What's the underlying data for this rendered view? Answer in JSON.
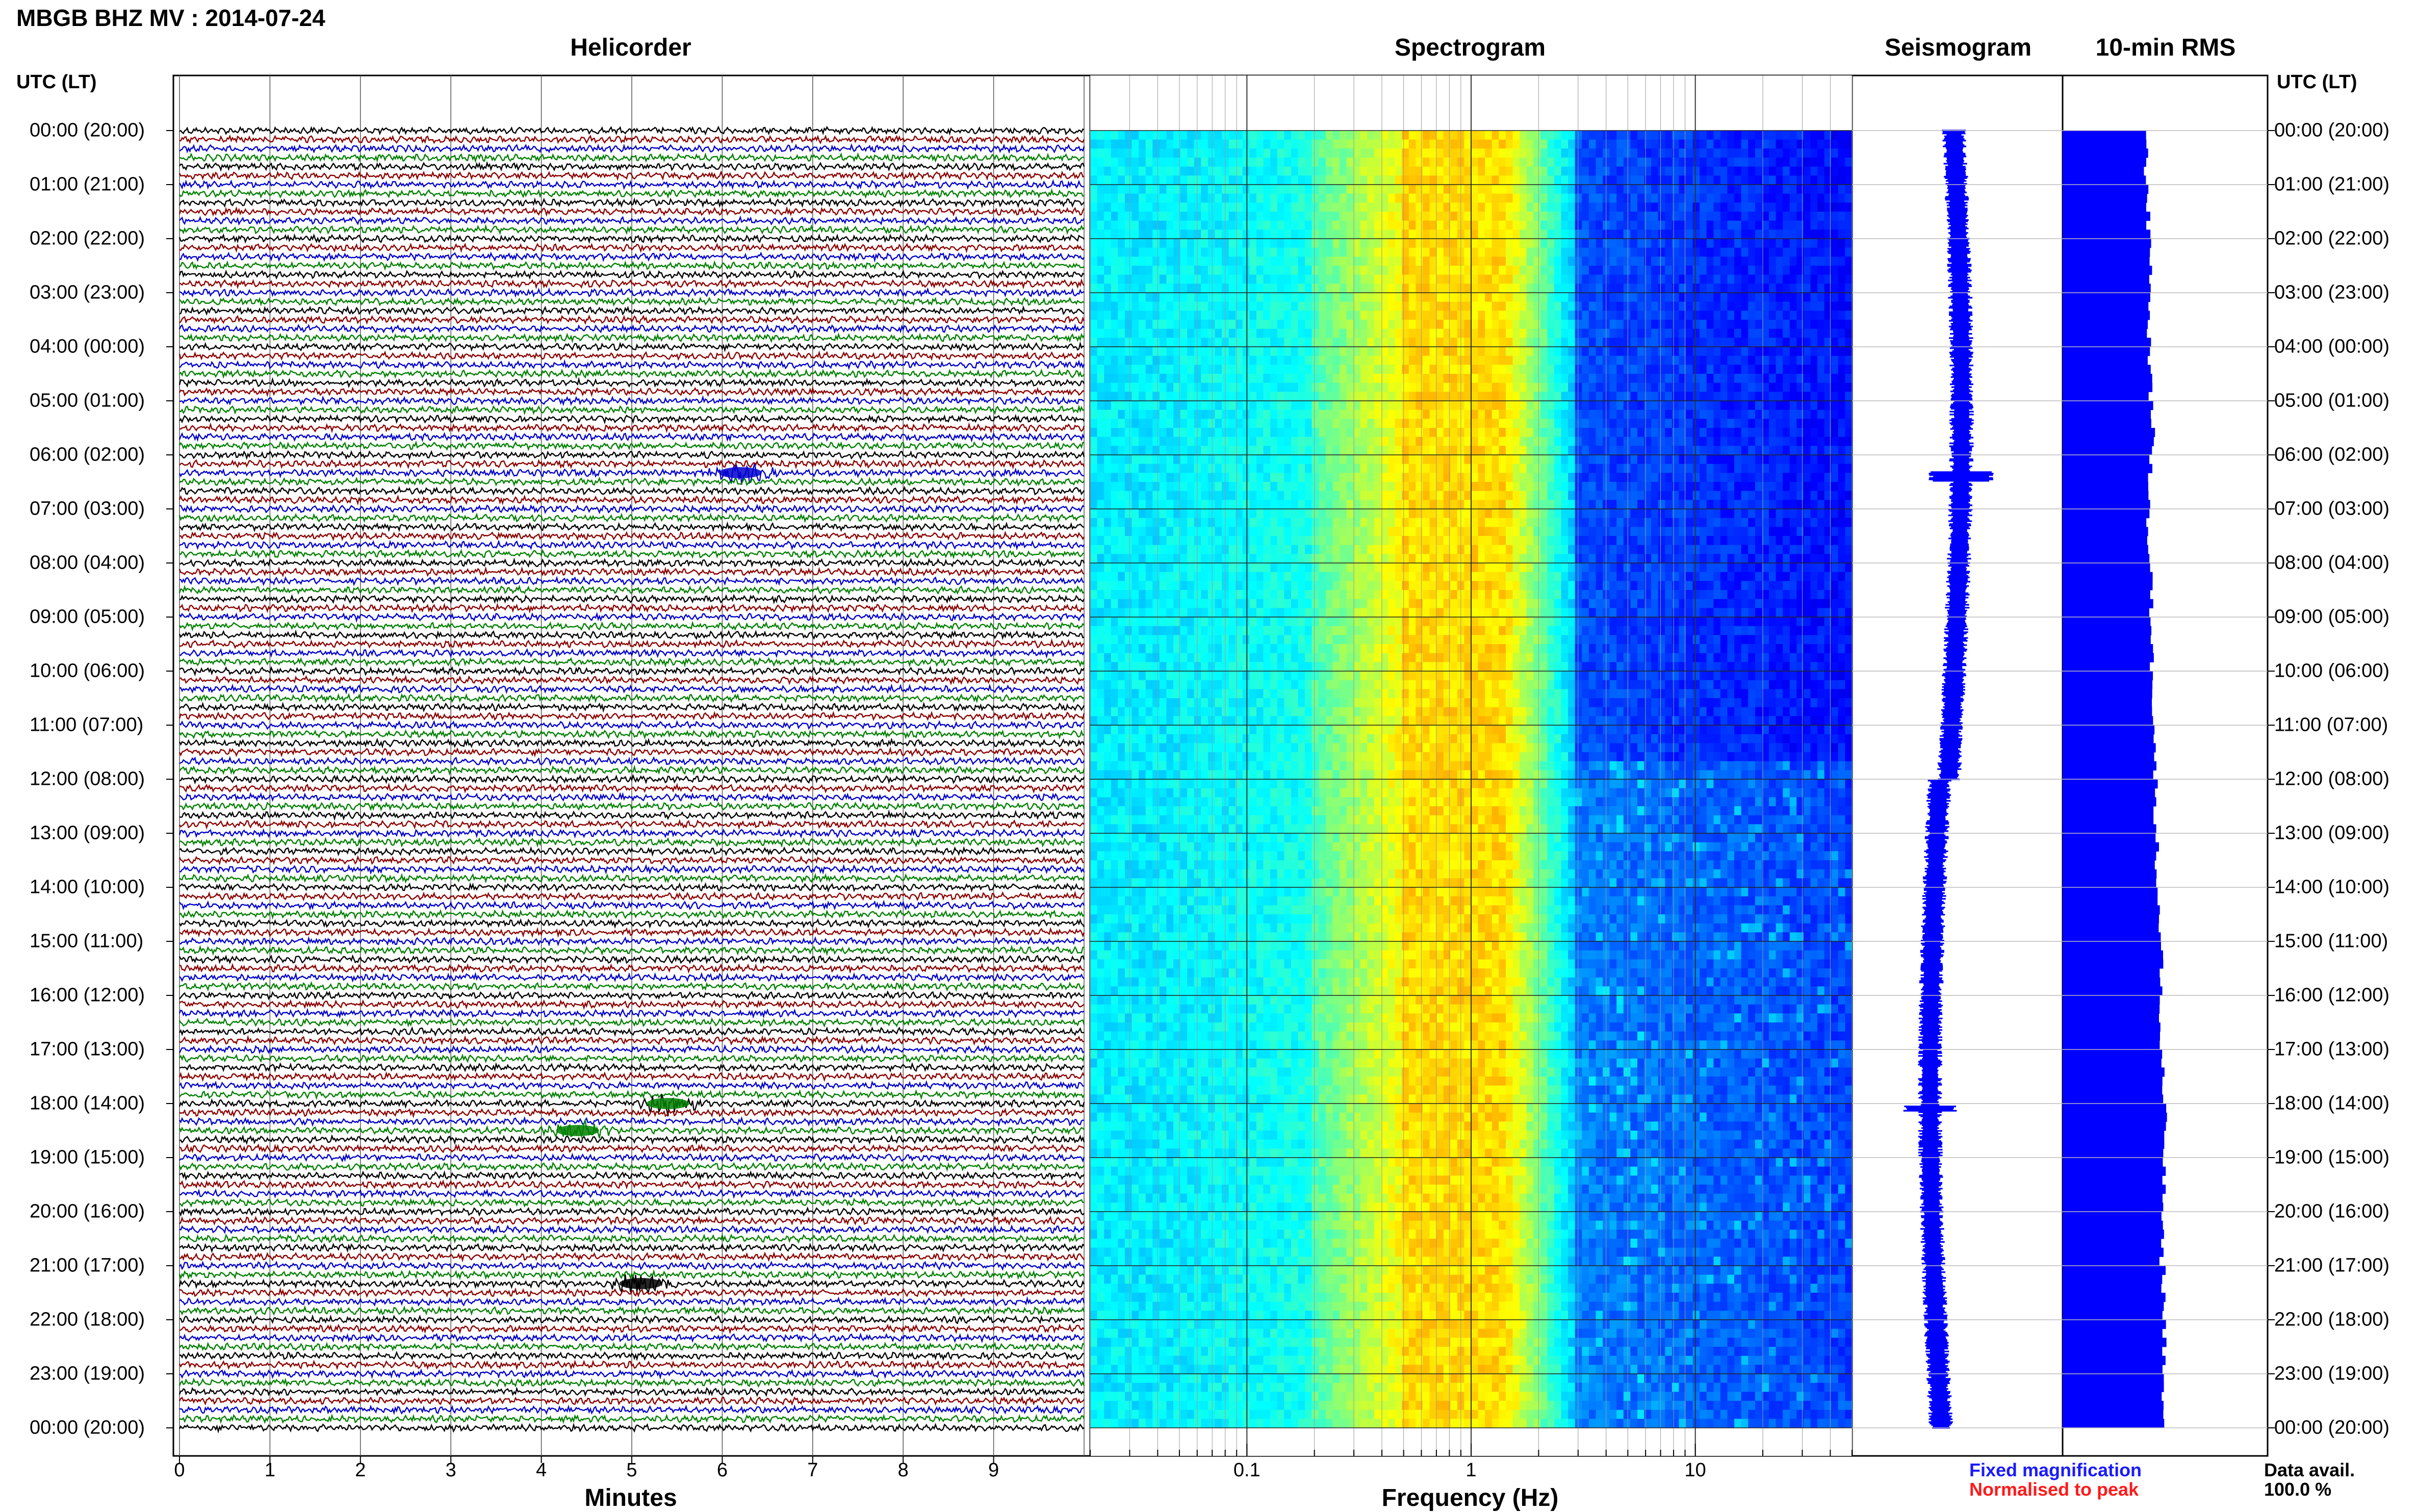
{
  "header": {
    "title": "MBGB BHZ MV : 2014-07-24"
  },
  "panels": {
    "helicorder": "Helicorder",
    "spectrogram": "Spectrogram",
    "seismogram": "Seismogram",
    "rms": "10-min RMS"
  },
  "axes": {
    "utc_label_left": "UTC (LT)",
    "utc_label_right": "UTC (LT)",
    "minutes_label": "Minutes",
    "frequency_label": "Frequency (Hz)"
  },
  "legend": {
    "fixed": "Fixed magnification",
    "normalised": "Normalised to peak"
  },
  "availability": {
    "label": "Data avail.",
    "value": "100.0 %"
  },
  "colors": {
    "trace_cycle": [
      "#000000",
      "#8b0000",
      "#0000cc",
      "#008000"
    ],
    "rms_bar": "#0000ff",
    "seismogram": "#0000ff",
    "legend_fixed": "#1a1aff",
    "legend_normalised": "#ff1a1a"
  },
  "chart_data": [
    {
      "type": "line",
      "panel": "helicorder",
      "title": "Helicorder",
      "xlabel": "Minutes",
      "ylabel": "UTC (LT)",
      "xlim": [
        0,
        10
      ],
      "x_ticks": [
        "0",
        "1",
        "2",
        "3",
        "4",
        "5",
        "6",
        "7",
        "8",
        "9"
      ],
      "y_ticks": [
        "00:00 (20:00)",
        "01:00 (21:00)",
        "02:00 (22:00)",
        "03:00 (23:00)",
        "04:00 (00:00)",
        "05:00 (01:00)",
        "06:00 (02:00)",
        "07:00 (03:00)",
        "08:00 (04:00)",
        "09:00 (05:00)",
        "10:00 (06:00)",
        "11:00 (07:00)",
        "12:00 (08:00)",
        "13:00 (09:00)",
        "14:00 (10:00)",
        "15:00 (11:00)",
        "16:00 (12:00)",
        "17:00 (13:00)",
        "18:00 (14:00)",
        "19:00 (15:00)",
        "20:00 (16:00)",
        "21:00 (17:00)",
        "22:00 (18:00)",
        "23:00 (19:00)",
        "00:00 (20:00)"
      ],
      "traces_per_hour": 6,
      "events": [
        {
          "hour": 6.33,
          "minute": 6.2,
          "color": "#0000cc"
        },
        {
          "hour": 18.0,
          "minute": 5.4,
          "color": "#008000"
        },
        {
          "hour": 18.5,
          "minute": 4.4,
          "color": "#008000"
        },
        {
          "hour": 21.33,
          "minute": 5.1,
          "color": "#000000"
        }
      ],
      "grid": true
    },
    {
      "type": "heatmap",
      "panel": "spectrogram",
      "title": "Spectrogram",
      "xlabel": "Frequency (Hz)",
      "x_scale": "log",
      "xlim": [
        0.02,
        50
      ],
      "x_ticks": [
        "0.1",
        "1",
        "10"
      ],
      "ylim_hours": [
        0,
        24
      ],
      "colormap": "jet",
      "peak_band_hz": [
        0.2,
        1.5
      ],
      "grid": true
    },
    {
      "type": "line",
      "panel": "seismogram",
      "title": "Seismogram",
      "ylim_hours": [
        0,
        24
      ],
      "color": "#0000ff"
    },
    {
      "type": "bar",
      "panel": "rms",
      "title": "10-min RMS",
      "orientation": "horizontal",
      "ylim_hours": [
        0,
        24
      ],
      "bin_minutes": 10,
      "relative_values": [
        0.86,
        0.88,
        0.91,
        0.89,
        0.9,
        0.93,
        0.9,
        0.88,
        0.91,
        0.92,
        0.94,
        0.95,
        0.96,
        0.97,
        0.99,
        1.02,
        1.0,
        1.03,
        1.05,
        1.04,
        1.02,
        1.04,
        1.05,
        1.03
      ]
    }
  ]
}
